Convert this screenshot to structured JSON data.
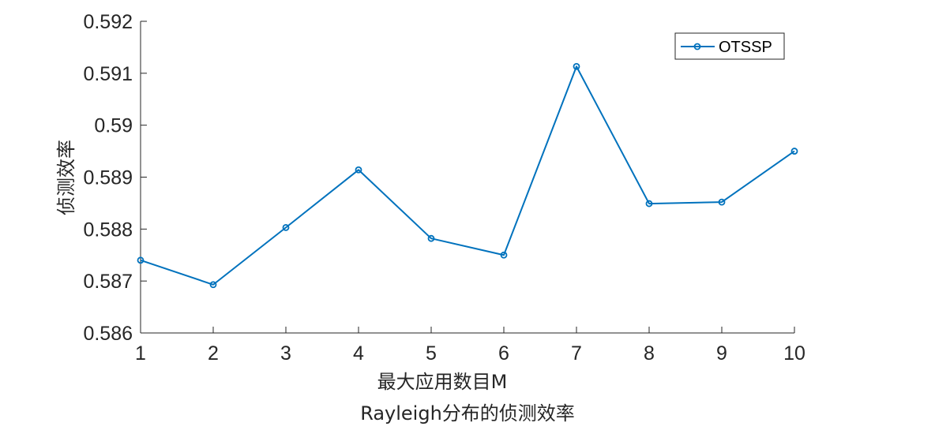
{
  "chart_data": {
    "type": "line",
    "x": [
      1,
      2,
      3,
      4,
      5,
      6,
      7,
      8,
      9,
      10
    ],
    "series": [
      {
        "name": "OTSSP",
        "values": [
          0.5874,
          0.58693,
          0.58803,
          0.58914,
          0.58782,
          0.5875,
          0.59113,
          0.58849,
          0.58852,
          0.5895
        ],
        "color": "#0072BD",
        "marker": "circle"
      }
    ],
    "xlabel": "最大应用数目M",
    "ylabel": "侦测效率",
    "caption": "Rayleigh分布的侦测效率",
    "xlim": [
      1,
      10
    ],
    "ylim": [
      0.586,
      0.592
    ],
    "xticks": [
      "1",
      "2",
      "3",
      "4",
      "5",
      "6",
      "7",
      "8",
      "9",
      "10"
    ],
    "yticks": [
      "0.586",
      "0.587",
      "0.588",
      "0.589",
      "0.59",
      "0.591",
      "0.592"
    ],
    "grid": false,
    "legend_position": "top-right"
  }
}
